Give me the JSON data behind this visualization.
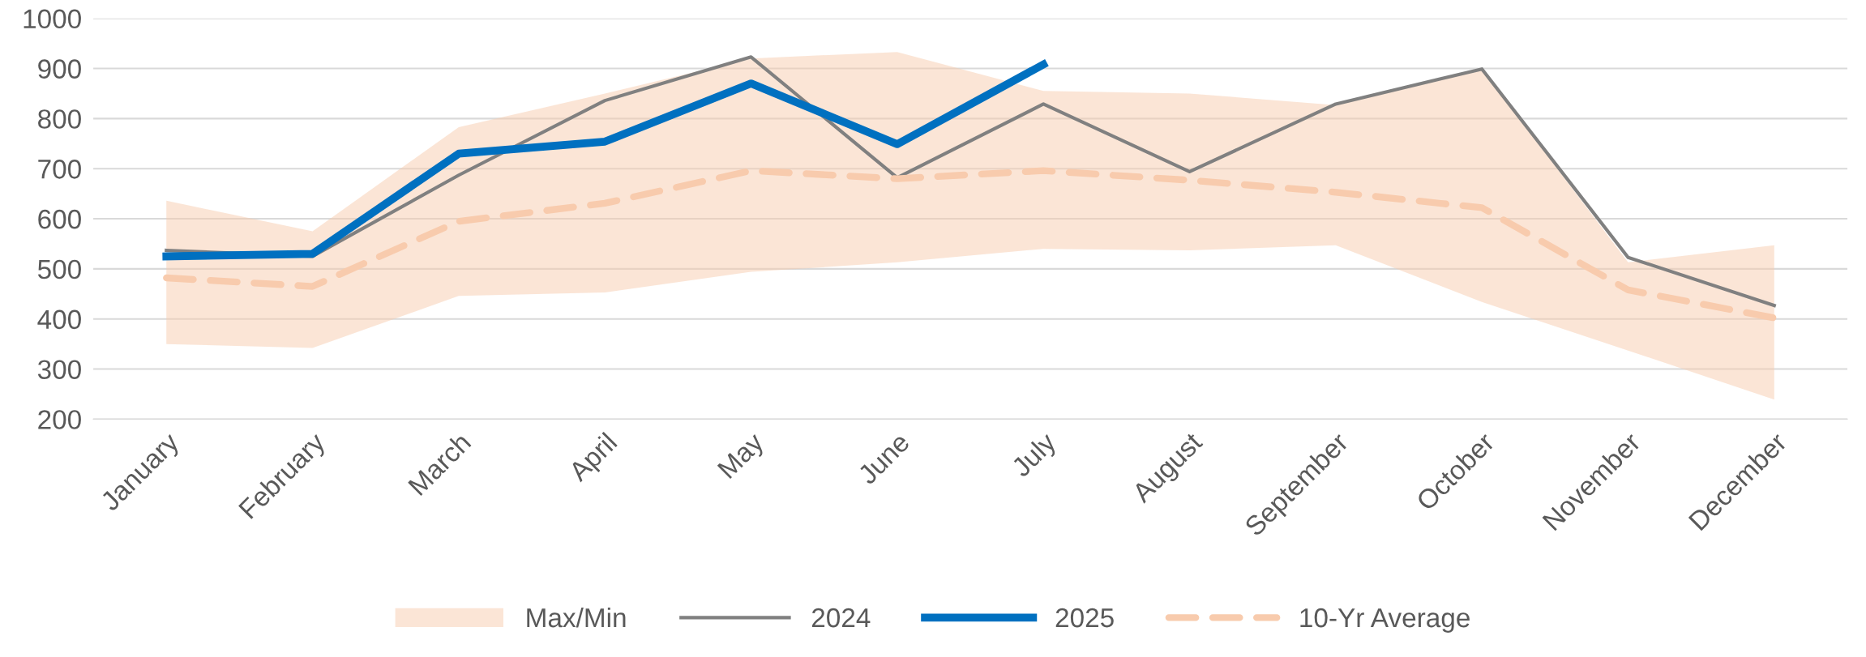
{
  "chart_data": {
    "type": "line",
    "categories": [
      "January",
      "February",
      "March",
      "April",
      "May",
      "June",
      "July",
      "August",
      "September",
      "October",
      "November",
      "December"
    ],
    "ylim": [
      200,
      1000
    ],
    "yticks": [
      200,
      300,
      400,
      500,
      600,
      700,
      800,
      900,
      1000
    ],
    "grid": "y",
    "legend": "bottom",
    "annotations": [
      "Max/Min"
    ],
    "series": [
      {
        "name": "2024",
        "color": "#808080",
        "line_style": "solid",
        "values": [
          537,
          525,
          687,
          836,
          923,
          682,
          829,
          694,
          829,
          899,
          523,
          427
        ]
      },
      {
        "name": "2025",
        "color": "#0070c0",
        "line_style": "solid",
        "values": [
          525,
          530,
          730,
          754,
          870,
          749,
          908,
          null,
          null,
          null,
          null,
          null
        ]
      },
      {
        "name": "10-Yr Average",
        "color": "#f8cbad",
        "line_style": "dashed",
        "values": [
          482,
          465,
          595,
          631,
          696,
          680,
          696,
          677,
          653,
          622,
          458,
          402
        ],
        "lower": [
          350,
          342,
          446,
          453,
          494,
          513,
          540,
          537,
          547,
          434,
          337,
          239
        ],
        "upper": [
          636,
          575,
          783,
          850,
          920,
          933,
          855,
          850,
          827,
          899,
          513,
          547
        ]
      }
    ]
  }
}
